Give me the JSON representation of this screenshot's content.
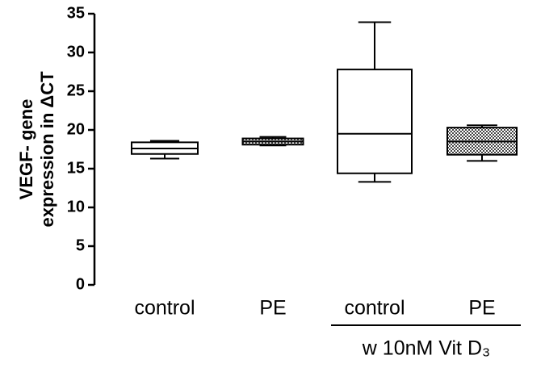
{
  "chart_data": {
    "type": "box",
    "y_label_lines": [
      "VEGF- gene",
      "expression in ΔCT"
    ],
    "categories": [
      "control",
      "PE",
      "control",
      "PE"
    ],
    "group_label": "w 10nM Vit D₃",
    "min": [
      16.3,
      18.0,
      13.3,
      16.0
    ],
    "q1": [
      16.9,
      18.1,
      14.4,
      16.8
    ],
    "median": [
      17.6,
      18.5,
      19.5,
      18.5
    ],
    "q3": [
      18.4,
      18.9,
      27.8,
      20.3
    ],
    "max": [
      18.6,
      19.1,
      33.9,
      20.6
    ],
    "patterned": [
      false,
      true,
      false,
      true
    ],
    "ylim": [
      0,
      35
    ],
    "yticks": [
      0,
      5,
      10,
      15,
      20,
      25,
      30,
      35
    ]
  }
}
